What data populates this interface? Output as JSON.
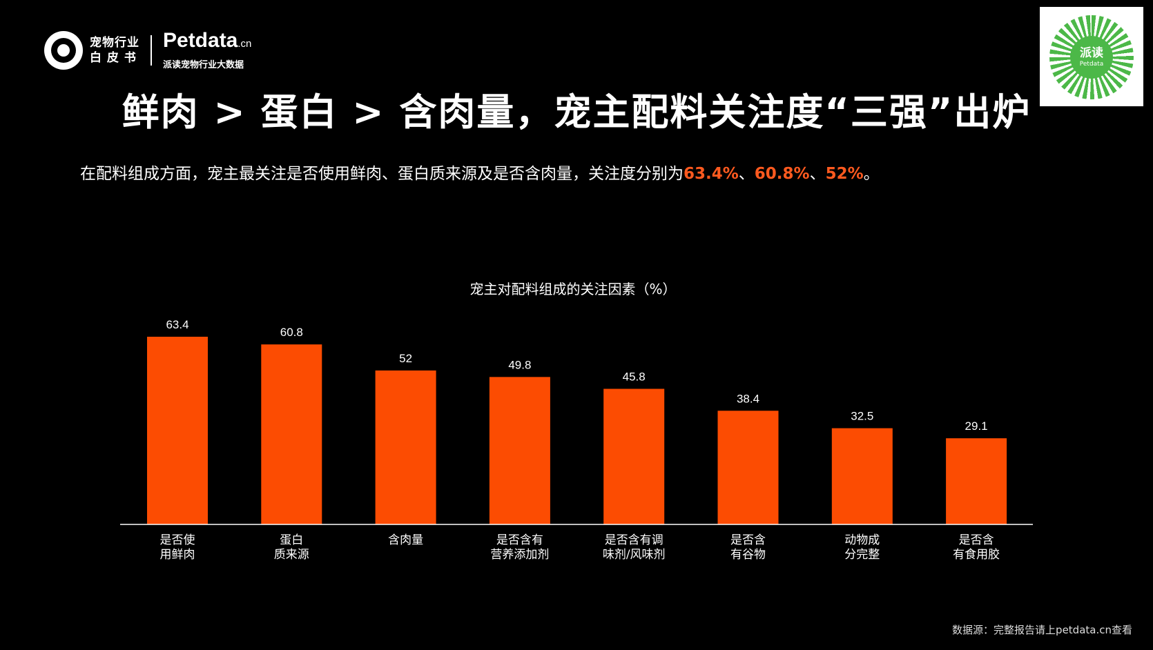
{
  "logo": {
    "line1": "宠物行业",
    "line2": "白 皮 书",
    "brand": "Petdata",
    "brand_suffix": ".cn",
    "brand_sub": "派读宠物行业大数据"
  },
  "qr": {
    "label": "派读",
    "sub": "Petdata"
  },
  "title": "鲜肉 > 蛋白 > 含肉量，宠主配料关注度“三强”出炉",
  "summary": {
    "prefix": "在配料组成方面，宠主最关注是否使用鲜肉、蛋白质来源及是否含肉量，关注度分别为",
    "v1": "63.4%",
    "sep1": "、",
    "v2": "60.8%",
    "sep2": "、",
    "v3": "52%",
    "suffix": "。"
  },
  "colors": {
    "bar": "#FC4C02",
    "highlight": "#FF5A1F",
    "background": "#000000"
  },
  "chart_data": {
    "type": "bar",
    "title": "宠主对配料组成的关注因素（%）",
    "categories": [
      [
        "是否使",
        "用鲜肉"
      ],
      [
        "蛋白",
        "质来源"
      ],
      [
        "含肉量"
      ],
      [
        "是否含有",
        "营养添加剂"
      ],
      [
        "是否含有调",
        "味剂/风味剂"
      ],
      [
        "是否含",
        "有谷物"
      ],
      [
        "动物成",
        "分完整"
      ],
      [
        "是否含",
        "有食用胶"
      ]
    ],
    "values": [
      63.4,
      60.8,
      52,
      49.8,
      45.8,
      38.4,
      32.5,
      29.1
    ],
    "value_labels": [
      "63.4",
      "60.8",
      "52",
      "49.8",
      "45.8",
      "38.4",
      "32.5",
      "29.1"
    ],
    "ylim": [
      0,
      63.4
    ],
    "grid": false,
    "legend": "none"
  },
  "source": "数据源：完整报告请上petdata.cn查看"
}
